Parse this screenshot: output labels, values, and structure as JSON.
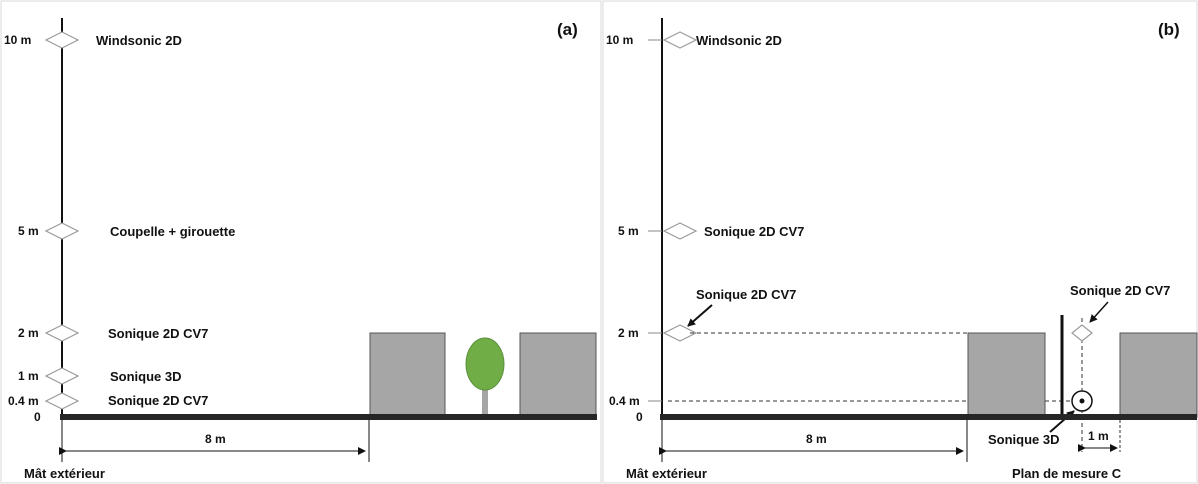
{
  "panel_a": {
    "tag": "(a)",
    "heights": {
      "h10": "10 m",
      "h5": "5 m",
      "h2": "2 m",
      "h1": "1 m",
      "h04": "0.4 m",
      "h0": "0"
    },
    "sensors": {
      "s10": "Windsonic 2D",
      "s5": "Coupelle + girouette",
      "s2": "Sonique 2D CV7",
      "s1": "Sonique 3D",
      "s04": "Sonique 2D CV7"
    },
    "distance": "8 m",
    "mast_label": "Mât extérieur"
  },
  "panel_b": {
    "tag": "(b)",
    "heights": {
      "h10": "10 m",
      "h5": "5 m",
      "h2": "2 m",
      "h04": "0.4 m",
      "h0": "0"
    },
    "sensors": {
      "s10": "Windsonic 2D",
      "s5": "Sonique 2D CV7",
      "s2_mast": "Sonique 2D CV7",
      "s2_plane": "Sonique 2D CV7",
      "s04_plane": "Sonique 3D"
    },
    "distance": "8 m",
    "distance_small": "1 m",
    "mast_label": "Mât extérieur",
    "plane_label": "Plan de mesure C"
  },
  "colors": {
    "building": "#a6a6a6",
    "tree_canopy": "#70ad47",
    "ground": "#262626"
  }
}
